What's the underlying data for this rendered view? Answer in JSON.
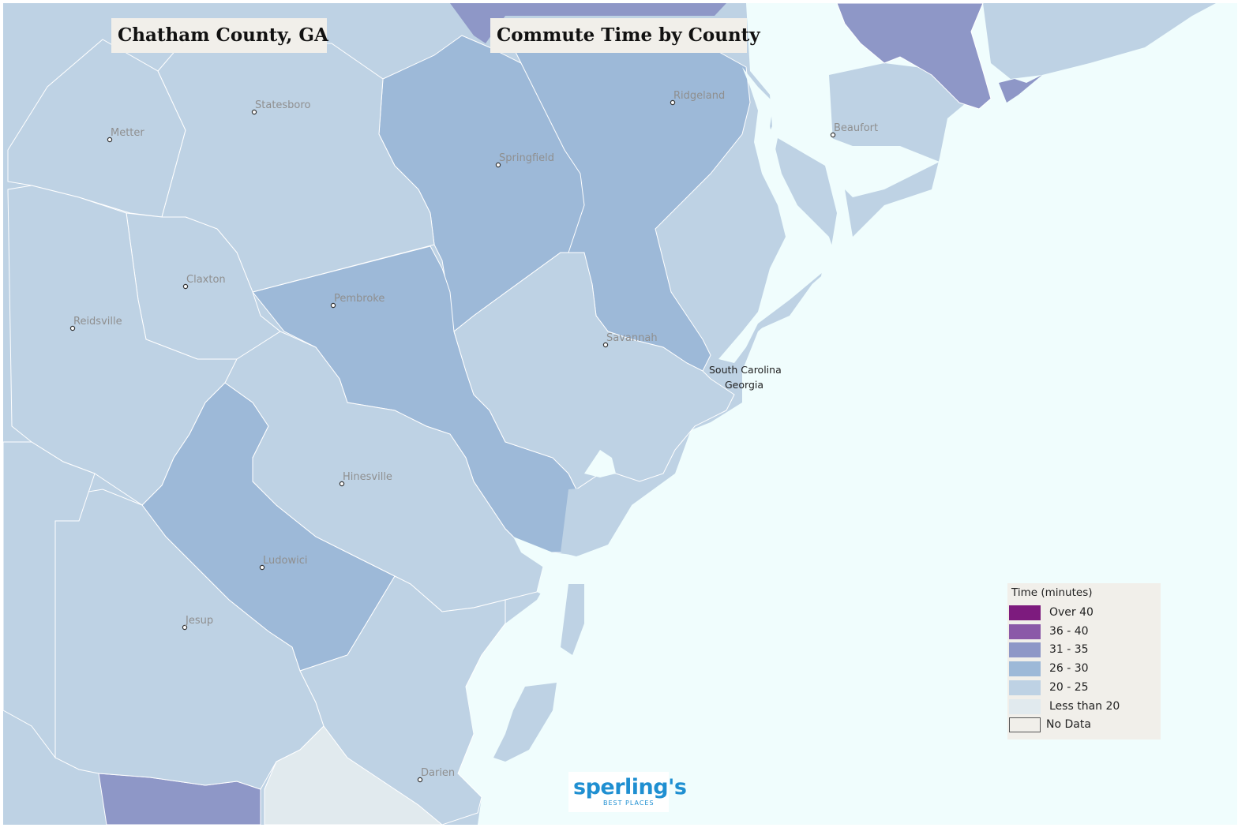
{
  "map": {
    "county_title": "Chatham County, GA",
    "map_title": "Commute Time by County",
    "cities": [
      {
        "name": "Metter"
      },
      {
        "name": "Statesboro"
      },
      {
        "name": "Springfield"
      },
      {
        "name": "Ridgeland"
      },
      {
        "name": "Beaufort"
      },
      {
        "name": "Claxton"
      },
      {
        "name": "Reidsville"
      },
      {
        "name": "Pembroke"
      },
      {
        "name": "Savannah"
      },
      {
        "name": "Hinesville"
      },
      {
        "name": "Ludowici"
      },
      {
        "name": "Jesup"
      },
      {
        "name": "Darien"
      }
    ],
    "state_labels": [
      "South Carolina",
      "Georgia"
    ]
  },
  "legend": {
    "title": "Time  (minutes)",
    "items": [
      {
        "label": "Over 40",
        "color": "#7d1b7e"
      },
      {
        "label": "36 - 40",
        "color": "#8b59a8"
      },
      {
        "label": "31 - 35",
        "color": "#8e97c7"
      },
      {
        "label": "26 - 30",
        "color": "#9db9d8"
      },
      {
        "label": "20 - 25",
        "color": "#bed2e4"
      },
      {
        "label": "Less than 20",
        "color": "#e1eaee"
      },
      {
        "label": "No Data",
        "color": "#f1efea"
      }
    ]
  },
  "logo": {
    "name": "sperling's",
    "tagline": "BEST PLACES"
  },
  "colors": {
    "ocean": "#f0fdfd",
    "range_20_25": "#bed2e4",
    "range_26_30": "#9db9d8",
    "range_31_35": "#8e97c7",
    "less_than_20": "#e1eaee"
  }
}
